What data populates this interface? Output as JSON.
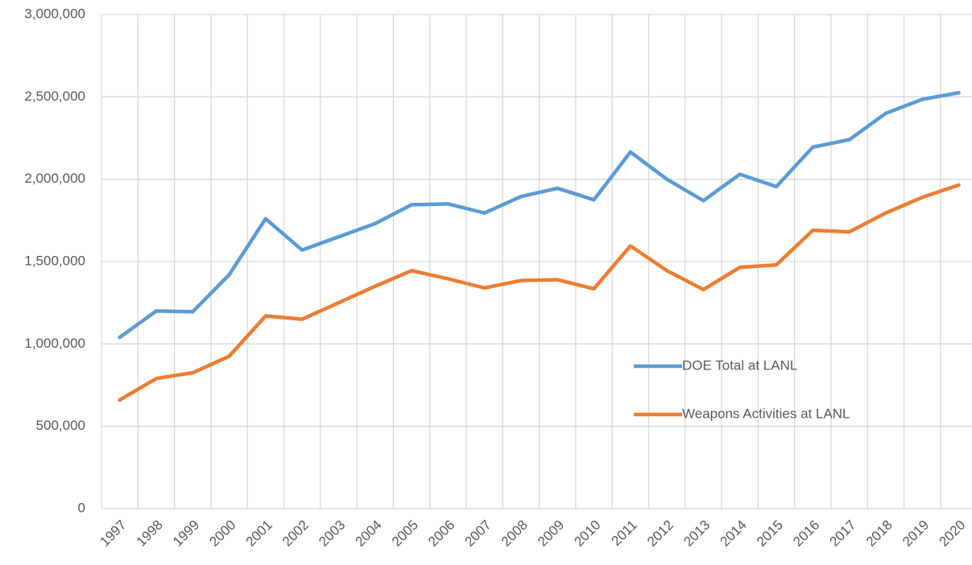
{
  "chart_data": {
    "type": "line",
    "categories": [
      "1997",
      "1998",
      "1999",
      "2000",
      "2001",
      "2002",
      "2003",
      "2004",
      "2005",
      "2006",
      "2007",
      "2008",
      "2009",
      "2010",
      "2011",
      "2012",
      "2013",
      "2014",
      "2015",
      "2016",
      "2017",
      "2018",
      "2019",
      "2020"
    ],
    "series": [
      {
        "name": "DOE Total at LANL",
        "color": "#5b9bd5",
        "values": [
          1040000,
          1200000,
          1195000,
          1420000,
          1760000,
          1570000,
          1650000,
          1730000,
          1845000,
          1850000,
          1795000,
          1895000,
          1945000,
          1875000,
          2165000,
          2000000,
          1870000,
          2030000,
          1955000,
          2195000,
          2240000,
          2400000,
          2485000,
          2525000
        ]
      },
      {
        "name": "Weapons Activities at LANL",
        "color": "#ed7d31",
        "values": [
          660000,
          790000,
          825000,
          925000,
          1170000,
          1150000,
          1250000,
          1350000,
          1445000,
          1395000,
          1340000,
          1385000,
          1390000,
          1335000,
          1595000,
          1445000,
          1330000,
          1465000,
          1480000,
          1690000,
          1680000,
          1795000,
          1890000,
          1965000
        ]
      }
    ],
    "ylim": [
      0,
      3000000
    ],
    "yticks": [
      0,
      {
        "value": 500000,
        "label": "500,000"
      },
      {
        "value": 1000000,
        "label": "1,000,000"
      },
      {
        "value": 1500000,
        "label": "1,500,000"
      },
      {
        "value": 2000000,
        "label": "2,000,000"
      },
      {
        "value": 2500000,
        "label": "2,500,000"
      },
      {
        "value": 3000000,
        "label": "3,000,000"
      }
    ],
    "grid": true,
    "legend": "right"
  }
}
